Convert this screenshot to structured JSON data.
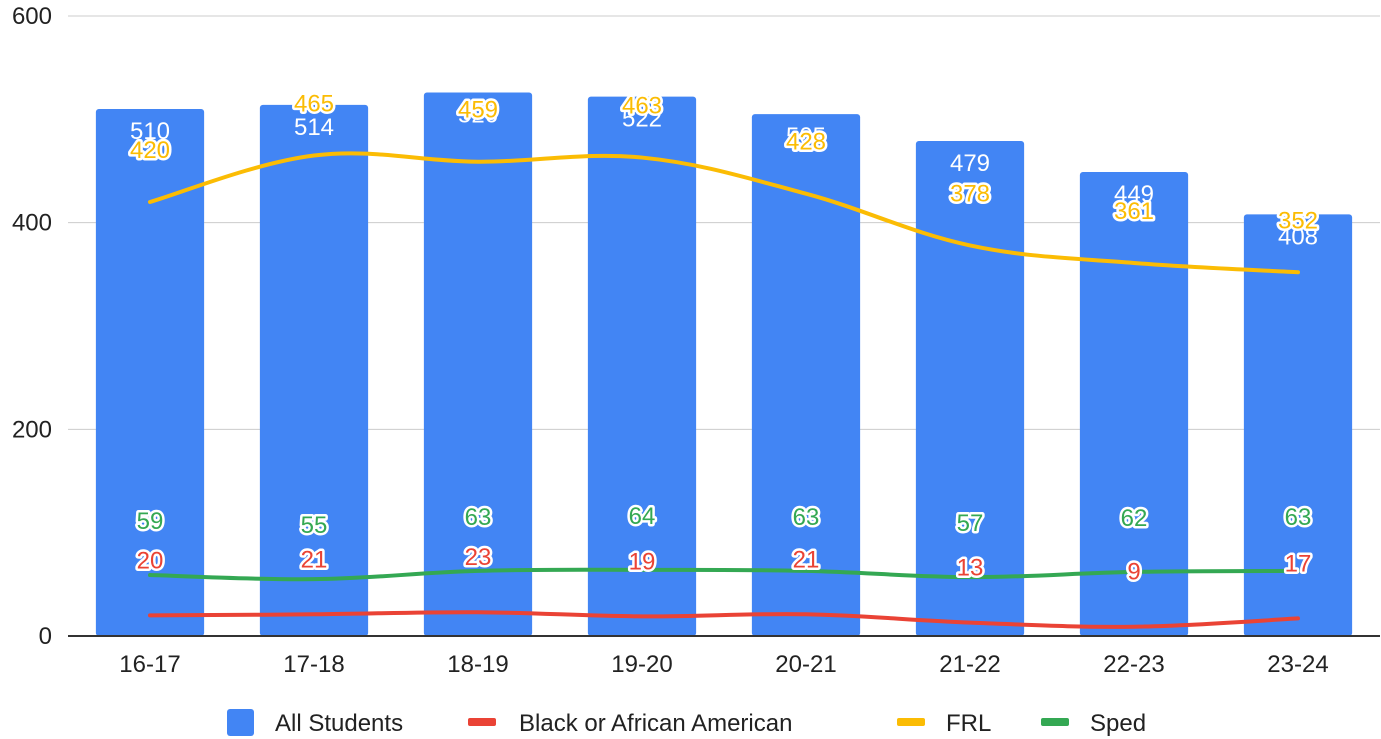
{
  "chart_data": {
    "type": "bar",
    "title": "",
    "xlabel": "",
    "ylabel": "",
    "categories": [
      "16-17",
      "17-18",
      "18-19",
      "19-20",
      "20-21",
      "21-22",
      "22-23",
      "23-24"
    ],
    "ylim": [
      0,
      600
    ],
    "yticks": [
      "0",
      "200",
      "400",
      "600"
    ],
    "grid": true,
    "legend_position": "bottom",
    "series": [
      {
        "name": "All Students",
        "kind": "bar",
        "color": "#4285f4",
        "values": [
          510,
          514,
          526,
          522,
          505,
          479,
          449,
          408
        ],
        "labels": [
          "510",
          "514",
          "526",
          "522",
          "505",
          "479",
          "449",
          "408"
        ]
      },
      {
        "name": "Black or African American",
        "kind": "line",
        "color": "#ea4335",
        "values": [
          20,
          21,
          23,
          19,
          21,
          13,
          9,
          17
        ],
        "labels": [
          "20",
          "21",
          "23",
          "19",
          "21",
          "13",
          "9",
          "17"
        ]
      },
      {
        "name": "FRL",
        "kind": "line",
        "color": "#fbbc04",
        "values": [
          420,
          465,
          459,
          463,
          428,
          378,
          361,
          352
        ],
        "labels": [
          "420",
          "465",
          "459",
          "463",
          "428",
          "378",
          "361",
          "352"
        ]
      },
      {
        "name": "Sped",
        "kind": "line",
        "color": "#34a853",
        "values": [
          59,
          55,
          63,
          64,
          63,
          57,
          62,
          63
        ],
        "labels": [
          "59",
          "55",
          "63",
          "64",
          "63",
          "57",
          "62",
          "63"
        ]
      }
    ]
  }
}
